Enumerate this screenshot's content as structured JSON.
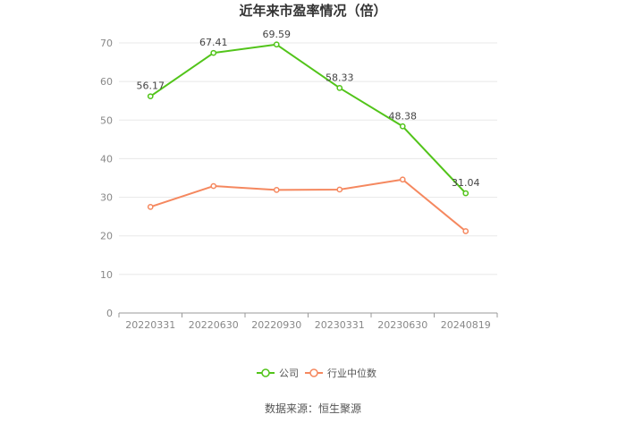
{
  "chart_data": {
    "type": "line",
    "title": "近年来市盈率情况（倍）",
    "categories": [
      "20220331",
      "20220630",
      "20220930",
      "20230331",
      "20230630",
      "20240819"
    ],
    "ylim": [
      0,
      70
    ],
    "yticks": [
      0,
      10,
      20,
      30,
      40,
      50,
      60,
      70
    ],
    "grid": true,
    "legend_position": "bottom",
    "series": [
      {
        "name": "公司",
        "color": "#52c41a",
        "values": [
          56.17,
          67.41,
          69.59,
          58.33,
          48.38,
          31.04
        ],
        "labels": [
          "56.17",
          "67.41",
          "69.59",
          "58.33",
          "48.38",
          "31.04"
        ]
      },
      {
        "name": "行业中位数",
        "color": "#f5885f",
        "values": [
          27.5,
          32.9,
          31.9,
          32.0,
          34.6,
          21.2
        ]
      }
    ],
    "source": "数据来源：恒生聚源"
  }
}
